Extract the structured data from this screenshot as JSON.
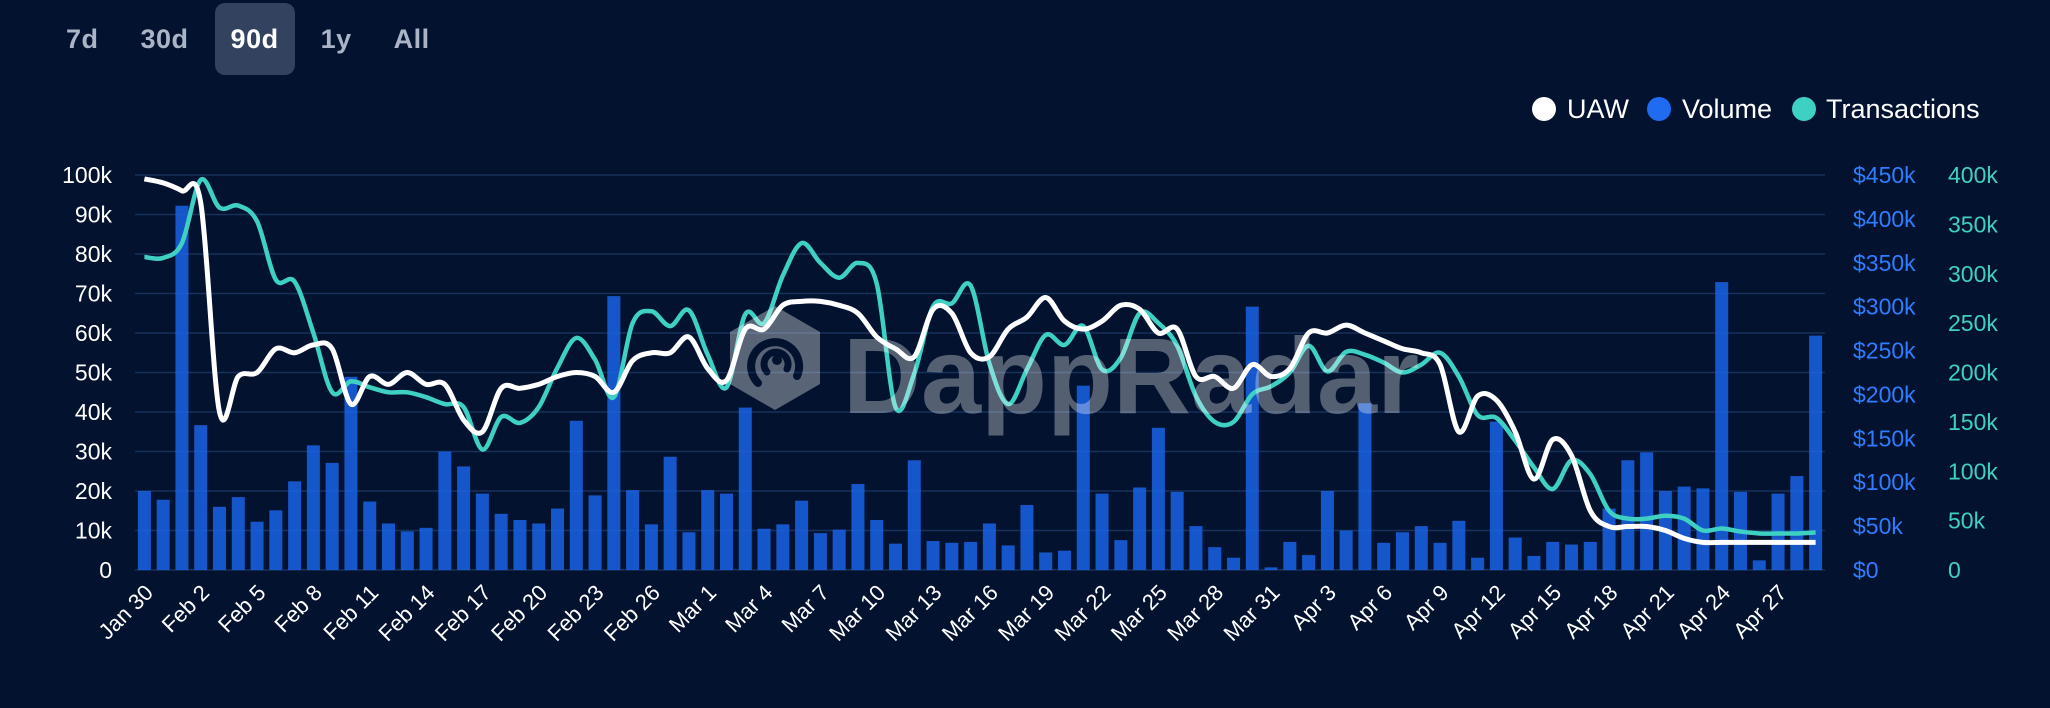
{
  "range_tabs": [
    "7d",
    "30d",
    "90d",
    "1y",
    "All"
  ],
  "active_range": "90d",
  "watermark": "DappRadar",
  "colors": {
    "uaw": "#ffffff",
    "volume": "#1a63e6",
    "transactions": "#3fd0c4",
    "grid": "#16315a",
    "background": "#03132f"
  },
  "chart_data": {
    "type": "bar",
    "legend_position": "top-right",
    "legend": [
      "UAW",
      "Volume",
      "Transactions"
    ],
    "x_tick_labels": [
      "Jan 30",
      "Feb 2",
      "Feb 5",
      "Feb 8",
      "Feb 11",
      "Feb 14",
      "Feb 17",
      "Feb 20",
      "Feb 23",
      "Feb 26",
      "Mar 1",
      "Mar 4",
      "Mar 7",
      "Mar 10",
      "Mar 13",
      "Mar 16",
      "Mar 19",
      "Mar 22",
      "Mar 25",
      "Mar 28",
      "Mar 31",
      "Apr 3",
      "Apr 6",
      "Apr 9",
      "Apr 12",
      "Apr 15",
      "Apr 18",
      "Apr 21",
      "Apr 24",
      "Apr 27"
    ],
    "axes": {
      "left": {
        "series": "UAW",
        "min": 0,
        "max": 100000,
        "ticks": [
          "0",
          "10k",
          "20k",
          "30k",
          "40k",
          "50k",
          "60k",
          "70k",
          "80k",
          "90k",
          "100k"
        ]
      },
      "right_volume": {
        "series": "Volume",
        "min": 0,
        "max": 450000,
        "ticks": [
          "$0",
          "$50k",
          "$100k",
          "$150k",
          "$200k",
          "$250k",
          "$300k",
          "$350k",
          "$400k",
          "$450k"
        ]
      },
      "right_transactions": {
        "series": "Transactions",
        "min": 0,
        "max": 400000,
        "ticks": [
          "0",
          "50k",
          "100k",
          "150k",
          "200k",
          "250k",
          "300k",
          "350k",
          "400k"
        ]
      }
    },
    "grid": true,
    "series": [
      {
        "name": "Volume",
        "type": "bar",
        "axis": "right_volume",
        "values": [
          90000,
          80000,
          415000,
          165000,
          72000,
          83000,
          55000,
          68000,
          101000,
          142000,
          122000,
          220000,
          78000,
          53000,
          44000,
          48000,
          135000,
          118000,
          87000,
          64000,
          57000,
          53000,
          70000,
          170000,
          85000,
          312000,
          91000,
          52000,
          129000,
          43000,
          91000,
          87000,
          185000,
          47000,
          52000,
          79000,
          42000,
          46000,
          98000,
          57000,
          30000,
          125000,
          33000,
          31000,
          32000,
          53000,
          28000,
          74000,
          20000,
          22000,
          210000,
          87000,
          34000,
          94000,
          162000,
          89000,
          50000,
          26000,
          14000,
          300000,
          3000,
          32000,
          17000,
          90000,
          45000,
          190000,
          31000,
          43000,
          50000,
          31000,
          56000,
          14000,
          169000,
          37000,
          16000,
          32000,
          29000,
          32000,
          70000,
          125000,
          134000,
          90000,
          95000,
          93000,
          328000,
          89000,
          11000,
          87000,
          107000,
          267000
        ]
      },
      {
        "name": "UAW",
        "type": "line",
        "axis": "left",
        "values": [
          99000,
          98000,
          96000,
          93000,
          40000,
          49000,
          50000,
          56000,
          55000,
          57000,
          56000,
          42000,
          49000,
          47000,
          50000,
          47000,
          47000,
          38000,
          35000,
          46000,
          46000,
          47000,
          49000,
          50000,
          49000,
          45000,
          53000,
          55000,
          55000,
          59000,
          51000,
          48000,
          61000,
          61000,
          67000,
          68000,
          68000,
          67000,
          65000,
          59000,
          56000,
          54000,
          66000,
          65000,
          55000,
          54000,
          61000,
          64000,
          69000,
          63000,
          61000,
          63000,
          67000,
          66000,
          60000,
          61000,
          49000,
          49000,
          46000,
          52000,
          49000,
          51000,
          60000,
          60000,
          62000,
          60000,
          58000,
          56000,
          55000,
          52000,
          35000,
          44000,
          43000,
          35000,
          23000,
          33000,
          29000,
          15000,
          11000,
          11000,
          11000,
          10000,
          8000,
          7000,
          7000,
          7000,
          7000,
          7000,
          7000,
          7000
        ]
      },
      {
        "name": "Transactions",
        "type": "line",
        "axis": "right_transactions",
        "values": [
          317000,
          316000,
          331000,
          395000,
          367000,
          369000,
          353000,
          294000,
          292000,
          240000,
          180000,
          191000,
          185000,
          180000,
          180000,
          175000,
          168000,
          165000,
          122000,
          155000,
          149000,
          165000,
          205000,
          235000,
          213000,
          175000,
          250000,
          262000,
          247000,
          263000,
          218000,
          185000,
          259000,
          250000,
          298000,
          331000,
          311000,
          296000,
          311000,
          290000,
          165000,
          199000,
          267000,
          270000,
          288000,
          209000,
          168000,
          203000,
          238000,
          228000,
          247000,
          203000,
          215000,
          260000,
          250000,
          227000,
          176000,
          150000,
          150000,
          178000,
          186000,
          200000,
          227000,
          201000,
          221000,
          218000,
          210000,
          200000,
          208000,
          220000,
          196000,
          157000,
          154000,
          131000,
          104000,
          82000,
          111000,
          97000,
          60000,
          52000,
          52000,
          55000,
          52000,
          40000,
          42000,
          39000,
          37000,
          37000,
          37000,
          38000
        ]
      }
    ]
  }
}
